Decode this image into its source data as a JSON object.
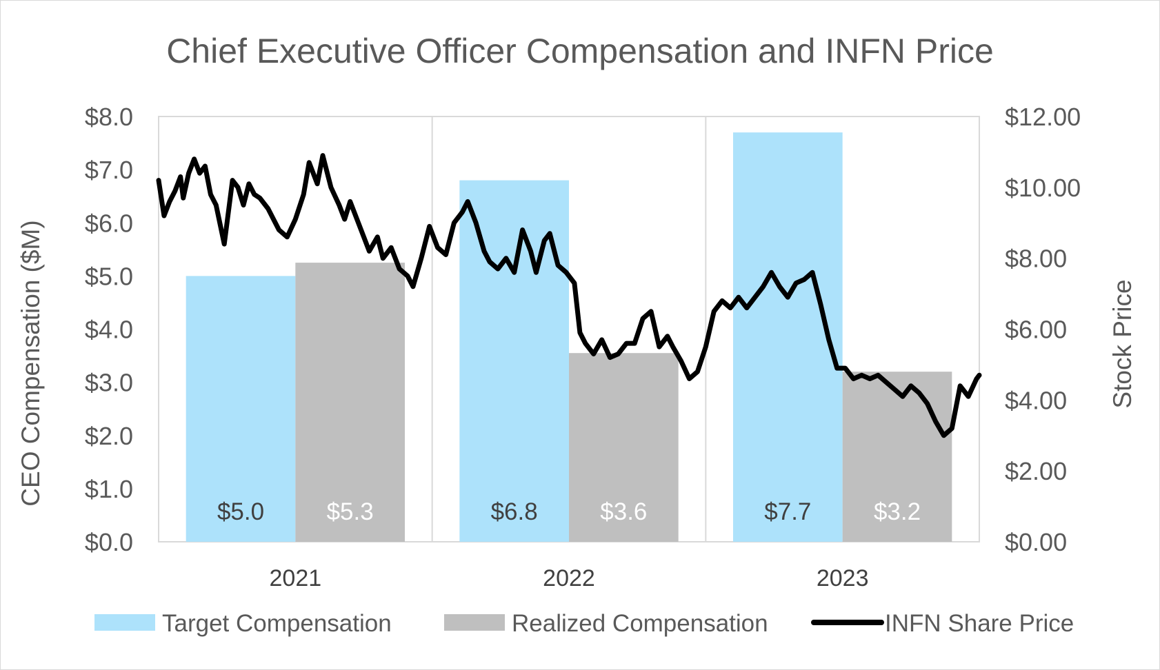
{
  "chart_data": {
    "type": "bar+line",
    "title": "Chief Executive Officer Compensation and INFN Price",
    "categories": [
      "2021",
      "2022",
      "2023"
    ],
    "y_left": {
      "label": "CEO Compensation ($M)",
      "range": [
        0,
        8
      ],
      "ticks": [
        "$0.0",
        "$1.0",
        "$2.0",
        "$3.0",
        "$4.0",
        "$5.0",
        "$6.0",
        "$7.0",
        "$8.0"
      ]
    },
    "y_right": {
      "label": "Stock Price",
      "range": [
        0,
        12
      ],
      "ticks": [
        "$0.00",
        "$2.00",
        "$4.00",
        "$6.00",
        "$8.00",
        "$10.00",
        "$12.00"
      ]
    },
    "series": [
      {
        "name": "Target Compensation",
        "kind": "bar",
        "color": "#ade2fb",
        "values": [
          5.0,
          6.8,
          7.7
        ],
        "data_labels": [
          "$5.0",
          "$6.8",
          "$7.7"
        ]
      },
      {
        "name": "Realized Compensation",
        "kind": "bar",
        "color": "#bfbfbf",
        "values": [
          5.25,
          3.55,
          3.2
        ],
        "data_labels": [
          "$5.3",
          "$3.6",
          "$3.2"
        ]
      },
      {
        "name": "INFN Share Price",
        "kind": "line",
        "axis": "right",
        "color": "#000000",
        "x_range": [
          0,
          3
        ],
        "points": [
          [
            0.0,
            10.2
          ],
          [
            0.02,
            9.2
          ],
          [
            0.04,
            9.6
          ],
          [
            0.06,
            9.9
          ],
          [
            0.08,
            10.3
          ],
          [
            0.09,
            9.7
          ],
          [
            0.11,
            10.4
          ],
          [
            0.13,
            10.8
          ],
          [
            0.15,
            10.4
          ],
          [
            0.17,
            10.6
          ],
          [
            0.19,
            9.8
          ],
          [
            0.21,
            9.5
          ],
          [
            0.24,
            8.4
          ],
          [
            0.27,
            10.2
          ],
          [
            0.29,
            10.0
          ],
          [
            0.31,
            9.5
          ],
          [
            0.33,
            10.1
          ],
          [
            0.35,
            9.8
          ],
          [
            0.37,
            9.7
          ],
          [
            0.4,
            9.4
          ],
          [
            0.42,
            9.1
          ],
          [
            0.44,
            8.8
          ],
          [
            0.47,
            8.6
          ],
          [
            0.5,
            9.1
          ],
          [
            0.53,
            9.8
          ],
          [
            0.55,
            10.7
          ],
          [
            0.58,
            10.1
          ],
          [
            0.6,
            10.9
          ],
          [
            0.63,
            10.0
          ],
          [
            0.66,
            9.5
          ],
          [
            0.68,
            9.1
          ],
          [
            0.7,
            9.6
          ],
          [
            0.73,
            9.0
          ],
          [
            0.75,
            8.6
          ],
          [
            0.77,
            8.2
          ],
          [
            0.8,
            8.6
          ],
          [
            0.82,
            8.0
          ],
          [
            0.85,
            8.3
          ],
          [
            0.88,
            7.7
          ],
          [
            0.91,
            7.5
          ],
          [
            0.93,
            7.2
          ],
          [
            0.96,
            8.0
          ],
          [
            0.99,
            8.9
          ],
          [
            1.02,
            8.3
          ],
          [
            1.05,
            8.1
          ],
          [
            1.08,
            9.0
          ],
          [
            1.11,
            9.3
          ],
          [
            1.13,
            9.6
          ],
          [
            1.16,
            9.0
          ],
          [
            1.19,
            8.2
          ],
          [
            1.21,
            7.9
          ],
          [
            1.24,
            7.7
          ],
          [
            1.27,
            8.0
          ],
          [
            1.3,
            7.6
          ],
          [
            1.33,
            8.8
          ],
          [
            1.36,
            8.2
          ],
          [
            1.38,
            7.6
          ],
          [
            1.41,
            8.5
          ],
          [
            1.43,
            8.7
          ],
          [
            1.46,
            7.8
          ],
          [
            1.49,
            7.6
          ],
          [
            1.52,
            7.3
          ],
          [
            1.54,
            5.9
          ],
          [
            1.56,
            5.6
          ],
          [
            1.59,
            5.3
          ],
          [
            1.62,
            5.7
          ],
          [
            1.65,
            5.2
          ],
          [
            1.68,
            5.3
          ],
          [
            1.71,
            5.6
          ],
          [
            1.74,
            5.6
          ],
          [
            1.77,
            6.3
          ],
          [
            1.8,
            6.5
          ],
          [
            1.83,
            5.5
          ],
          [
            1.86,
            5.8
          ],
          [
            1.88,
            5.5
          ],
          [
            1.91,
            5.1
          ],
          [
            1.94,
            4.6
          ],
          [
            1.97,
            4.8
          ],
          [
            2.0,
            5.5
          ],
          [
            2.03,
            6.5
          ],
          [
            2.06,
            6.8
          ],
          [
            2.09,
            6.6
          ],
          [
            2.12,
            6.9
          ],
          [
            2.15,
            6.6
          ],
          [
            2.18,
            6.9
          ],
          [
            2.21,
            7.2
          ],
          [
            2.24,
            7.6
          ],
          [
            2.27,
            7.2
          ],
          [
            2.3,
            6.9
          ],
          [
            2.33,
            7.3
          ],
          [
            2.36,
            7.4
          ],
          [
            2.39,
            7.6
          ],
          [
            2.42,
            6.7
          ],
          [
            2.45,
            5.7
          ],
          [
            2.48,
            4.9
          ],
          [
            2.51,
            4.9
          ],
          [
            2.54,
            4.6
          ],
          [
            2.57,
            4.7
          ],
          [
            2.6,
            4.6
          ],
          [
            2.63,
            4.7
          ],
          [
            2.66,
            4.5
          ],
          [
            2.69,
            4.3
          ],
          [
            2.72,
            4.1
          ],
          [
            2.75,
            4.4
          ],
          [
            2.78,
            4.2
          ],
          [
            2.81,
            3.9
          ],
          [
            2.84,
            3.4
          ],
          [
            2.87,
            3.0
          ],
          [
            2.9,
            3.2
          ],
          [
            2.93,
            4.4
          ],
          [
            2.96,
            4.1
          ],
          [
            2.99,
            4.6
          ],
          [
            3.0,
            4.7
          ]
        ]
      }
    ],
    "legend": {
      "position": "bottom",
      "entries": [
        "Target Compensation",
        "Realized Compensation",
        "INFN Share Price"
      ]
    },
    "grid": {
      "vertical_separators": true,
      "horizontal": false
    }
  }
}
